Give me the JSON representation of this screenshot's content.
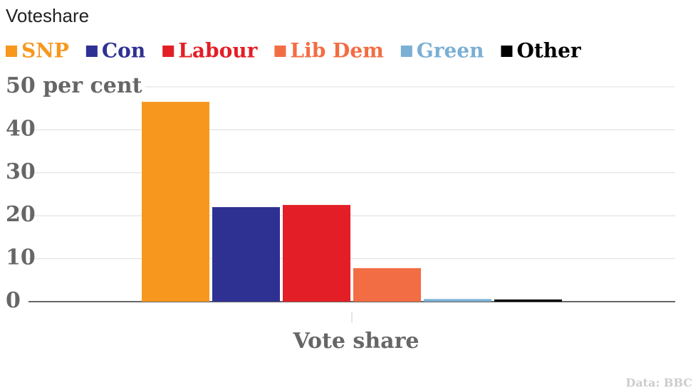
{
  "chart_data": {
    "type": "bar",
    "title": "Voteshare",
    "x_label": "Vote share",
    "source": "Data: BBC",
    "categories": [
      "Vote share"
    ],
    "series": [
      {
        "name": "SNP",
        "color": "#f7971e",
        "values": [
          46.5
        ]
      },
      {
        "name": "Con",
        "color": "#2e3192",
        "values": [
          22.0
        ]
      },
      {
        "name": "Labour",
        "color": "#e31e26",
        "values": [
          22.5
        ]
      },
      {
        "name": "Lib Dem",
        "color": "#f26d44",
        "values": [
          7.8
        ]
      },
      {
        "name": "Green",
        "color": "#7bafd4",
        "values": [
          0.6
        ]
      },
      {
        "name": "Other",
        "color": "#000000",
        "values": [
          0.5
        ]
      }
    ],
    "ylim": [
      0,
      50
    ],
    "yticks": [
      0,
      10,
      20,
      30,
      40,
      {
        "value": 50,
        "label": "50 per cent"
      }
    ],
    "grid": true,
    "legend": "top"
  }
}
